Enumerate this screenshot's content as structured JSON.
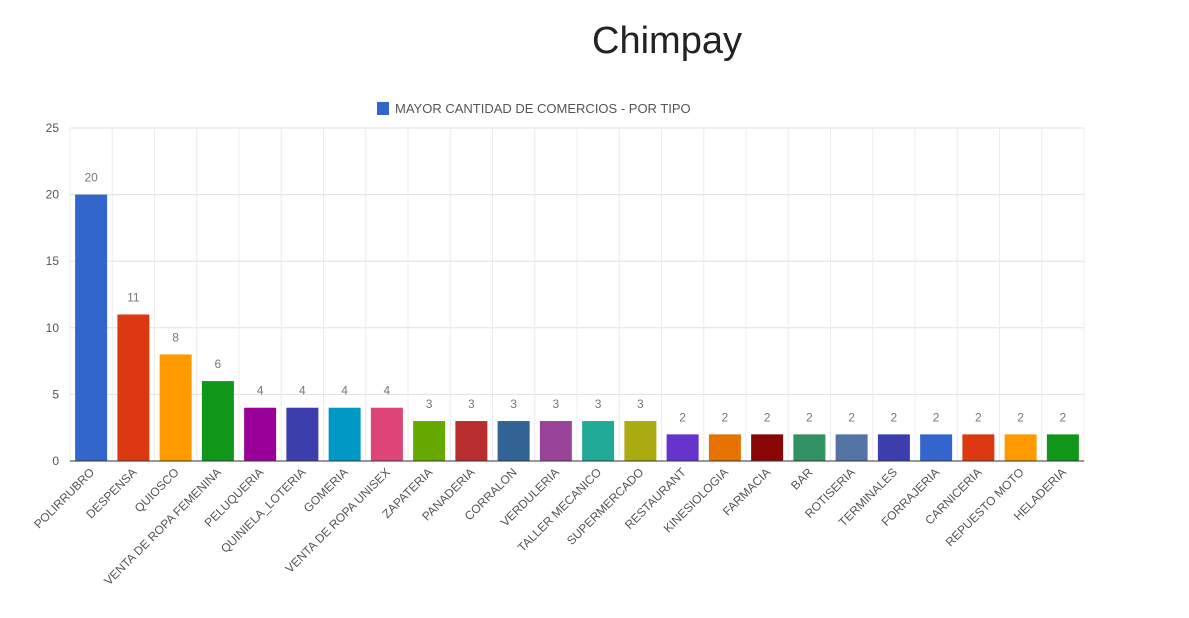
{
  "chart_data": {
    "type": "bar",
    "title": "Chimpay",
    "legend": {
      "label": "MAYOR CANTIDAD DE COMERCIOS - POR TIPO",
      "color": "#3366cc",
      "position": "top"
    },
    "ylim": [
      0,
      25
    ],
    "yticks": [
      "0",
      "5",
      "10",
      "15",
      "20",
      "25"
    ],
    "grid": true,
    "categories": [
      "POLIRRUBRO",
      "DESPENSA",
      "QUIOSCO",
      "VENTA DE ROPA FEMENINA",
      "PELUQUERIA",
      "QUINIELA_LOTERIA",
      "GOMERIA",
      "VENTA DE ROPA UNISEX",
      "ZAPATERIA",
      "PANADERIA",
      "CORRALON",
      "VERDULERIA",
      "TALLER MECANICO",
      "SUPERMERCADO",
      "RESTAURANT",
      "KINESIOLOGIA",
      "FARMACIA",
      "BAR",
      "ROTISERIA",
      "TERMINALES",
      "FORRAJERIA",
      "CARNICERIA",
      "REPUESTO MOTO",
      "HELADERIA"
    ],
    "values": [
      20,
      11,
      8,
      6,
      4,
      4,
      4,
      4,
      3,
      3,
      3,
      3,
      3,
      3,
      2,
      2,
      2,
      2,
      2,
      2,
      2,
      2,
      2,
      2
    ],
    "colors": [
      "#3366cc",
      "#dc3912",
      "#ff9900",
      "#109618",
      "#990099",
      "#3b3eac",
      "#0099c6",
      "#dd4477",
      "#66aa00",
      "#b82e2e",
      "#316395",
      "#994499",
      "#22aa99",
      "#aaaa11",
      "#6633cc",
      "#e67300",
      "#8b0707",
      "#329262",
      "#5574a6",
      "#3b3eac",
      "#3366cc",
      "#dc3912",
      "#ff9900",
      "#109618"
    ]
  }
}
